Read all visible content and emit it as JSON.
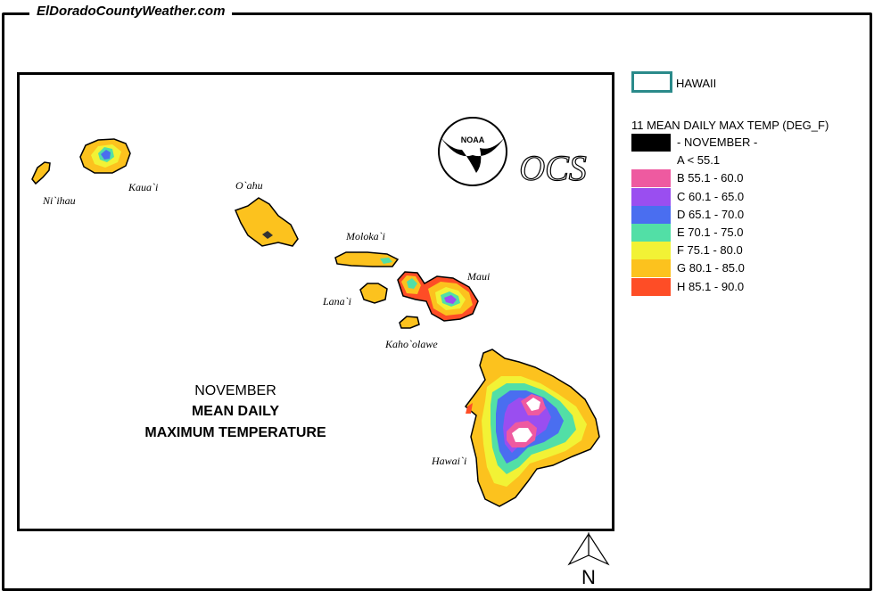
{
  "site": {
    "title": "ElDoradoCountyWeather.com"
  },
  "map": {
    "title_month": "NOVEMBER",
    "title_line2": "MEAN DAILY",
    "title_line3": "MAXIMUM TEMPERATURE",
    "island_labels": {
      "niihau": "Ni`ihau",
      "kauai": "Kaua`i",
      "oahu": "O`ahu",
      "molokai": "Moloka`i",
      "lanai": "Lana`i",
      "maui": "Maui",
      "kahoolawe": "Kaho`olawe",
      "hawaii": "Hawai`i"
    },
    "logos": {
      "noaa": "NOAA",
      "ocs": "OCS"
    },
    "north_label": "N"
  },
  "legend": {
    "state_label": "HAWAII",
    "title": "11 MEAN DAILY MAX TEMP (DEG_F)",
    "classes": [
      {
        "label": "- NOVEMBER -",
        "color": "#000000"
      },
      {
        "label": "A  < 55.1",
        "color": "#ffffff"
      },
      {
        "label": "B  55.1 - 60.0",
        "color": "#ee5aa0"
      },
      {
        "label": "C  60.1 - 65.0",
        "color": "#9a4ef0"
      },
      {
        "label": "D  65.1 - 70.0",
        "color": "#4a6ef0"
      },
      {
        "label": "E  70.1 - 75.0",
        "color": "#52dfa6"
      },
      {
        "label": "F  75.1 - 80.0",
        "color": "#f2f235"
      },
      {
        "label": "G  80.1 - 85.0",
        "color": "#fcc21e"
      },
      {
        "label": "H  85.1 - 90.0",
        "color": "#fe4d26"
      }
    ]
  }
}
